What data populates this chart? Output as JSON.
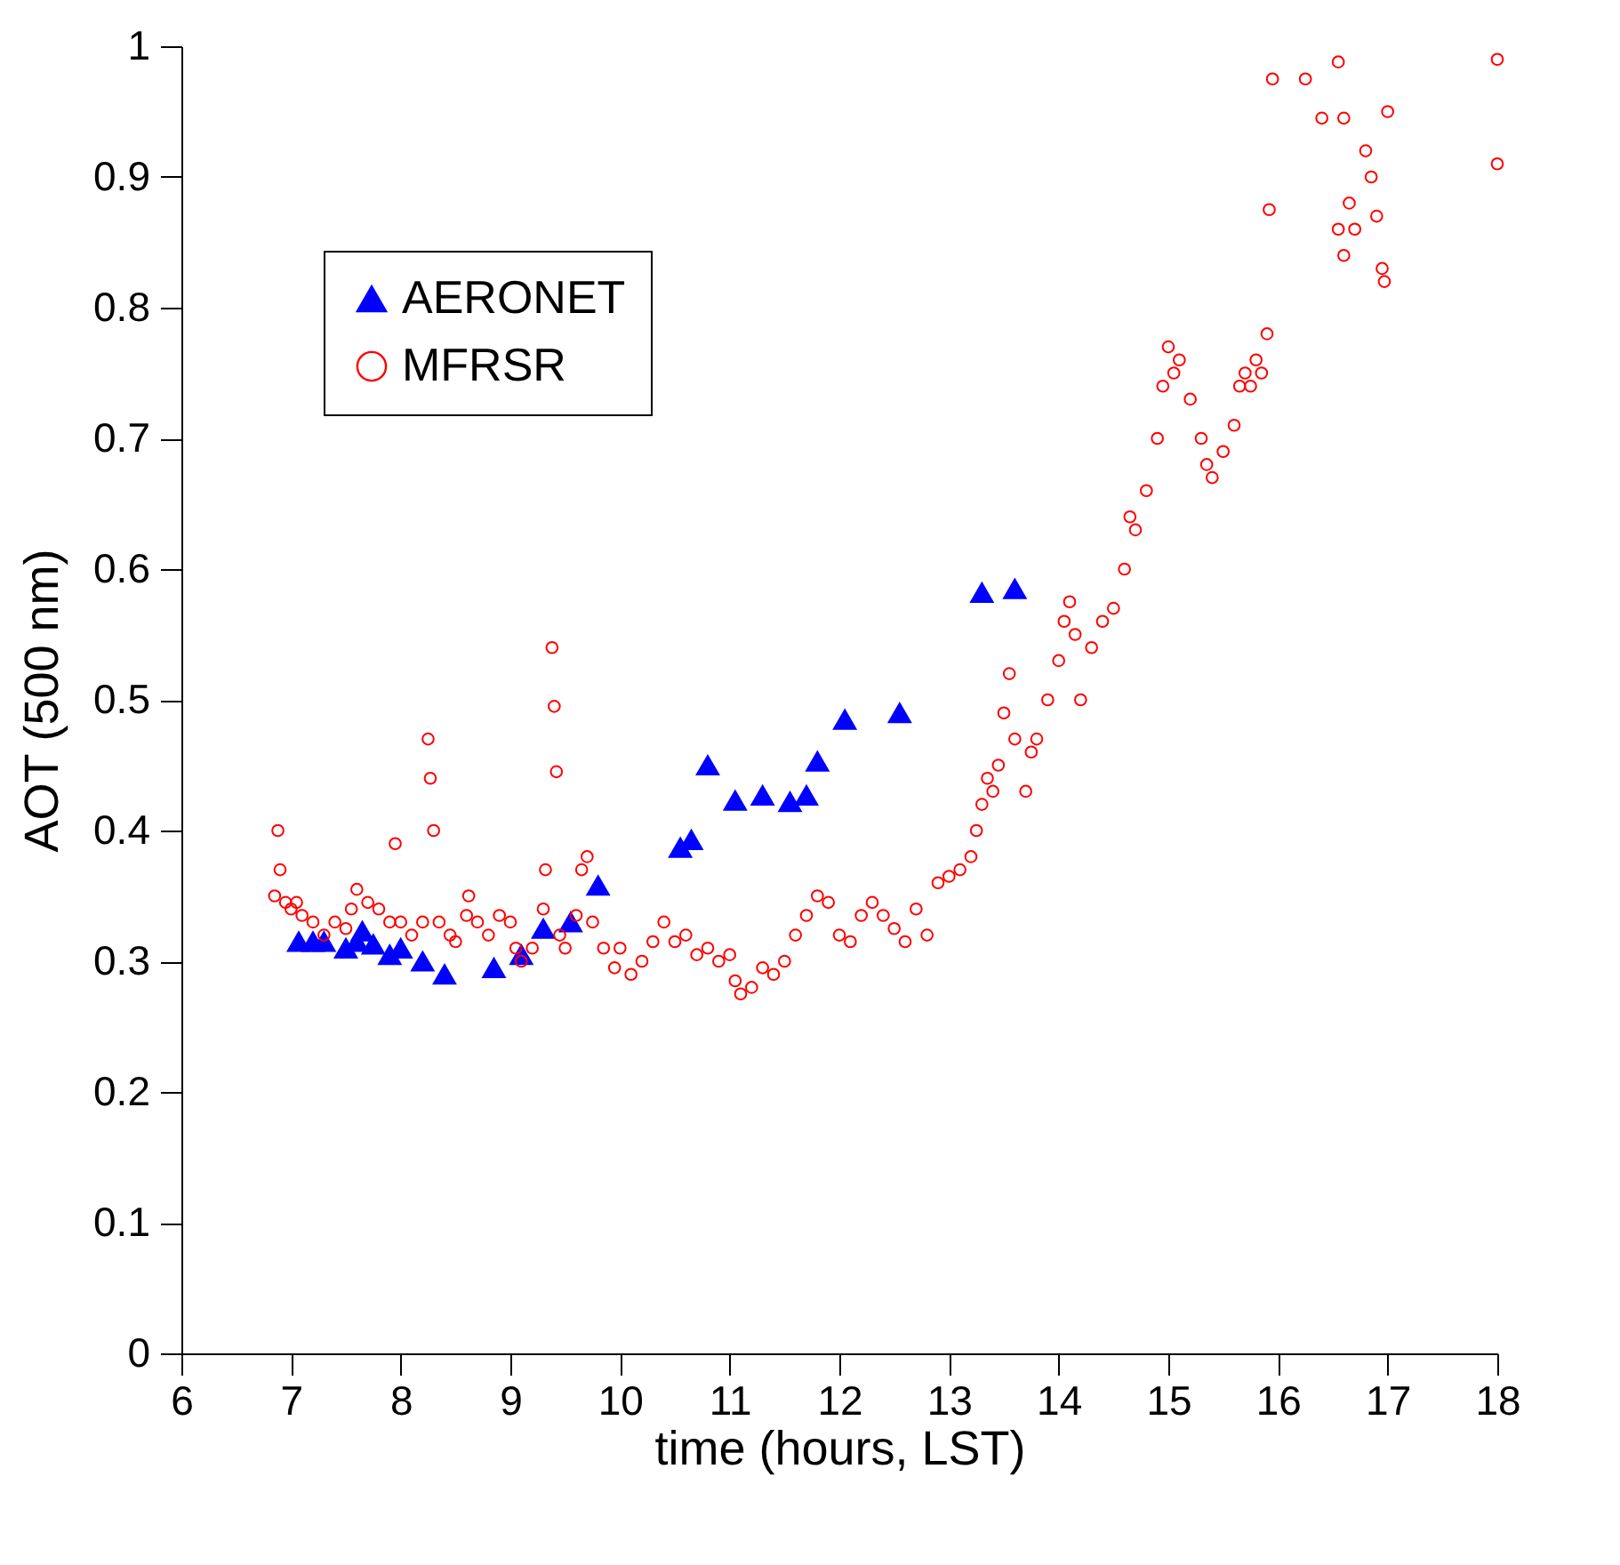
{
  "chart_data": {
    "type": "scatter",
    "xlabel": "time (hours, LST)",
    "ylabel": "AOT (500 nm)",
    "xlim": [
      6,
      18
    ],
    "xticks": [
      6,
      7,
      8,
      9,
      10,
      11,
      12,
      13,
      14,
      15,
      16,
      17,
      18
    ],
    "ylim": [
      0,
      1
    ],
    "yticks": [
      0,
      0.1,
      0.2,
      0.3,
      0.4,
      0.5,
      0.6,
      0.7,
      0.8,
      0.9,
      1
    ],
    "grid": false,
    "legend": "top left",
    "series": [
      {
        "name": "AERONET",
        "color": "#0000ff",
        "marker": "triangle",
        "x": [
          7.07,
          7.2,
          7.3,
          7.5,
          7.6,
          7.65,
          7.75,
          7.9,
          8.0,
          8.2,
          8.4,
          8.85,
          9.1,
          9.3,
          9.55,
          9.8,
          10.55,
          10.65,
          10.8,
          11.05,
          11.3,
          11.55,
          11.7,
          11.8,
          12.05,
          12.55,
          13.3,
          13.6
        ],
        "values": [
          0.315,
          0.315,
          0.315,
          0.31,
          0.315,
          0.323,
          0.313,
          0.305,
          0.31,
          0.3,
          0.29,
          0.295,
          0.305,
          0.325,
          0.33,
          0.358,
          0.387,
          0.393,
          0.45,
          0.423,
          0.427,
          0.422,
          0.427,
          0.453,
          0.485,
          0.49,
          0.582,
          0.585
        ]
      },
      {
        "name": "MFRSR",
        "color": "#ff0000",
        "marker": "circle",
        "x": [
          6.85,
          6.88,
          6.9,
          6.95,
          7.0,
          7.05,
          7.1,
          7.2,
          7.3,
          7.4,
          7.5,
          7.55,
          7.6,
          7.7,
          7.8,
          7.9,
          7.95,
          8.0,
          8.1,
          8.2,
          8.25,
          8.27,
          8.3,
          8.35,
          8.45,
          8.5,
          8.6,
          8.62,
          8.7,
          8.8,
          8.9,
          9.0,
          9.05,
          9.1,
          9.2,
          9.3,
          9.32,
          9.38,
          9.4,
          9.42,
          9.45,
          9.5,
          9.6,
          9.65,
          9.7,
          9.75,
          9.85,
          9.95,
          10.0,
          10.1,
          10.2,
          10.3,
          10.4,
          10.5,
          10.6,
          10.7,
          10.8,
          10.9,
          11.0,
          11.05,
          11.1,
          11.2,
          11.3,
          11.4,
          11.5,
          11.6,
          11.7,
          11.8,
          11.9,
          12.0,
          12.1,
          12.2,
          12.3,
          12.4,
          12.5,
          12.6,
          12.7,
          12.8,
          12.9,
          13.0,
          13.1,
          13.2,
          13.25,
          13.3,
          13.35,
          13.4,
          13.45,
          13.5,
          13.55,
          13.6,
          13.7,
          13.75,
          13.8,
          13.9,
          14.0,
          14.05,
          14.1,
          14.15,
          14.2,
          14.3,
          14.4,
          14.5,
          14.6,
          14.65,
          14.7,
          14.8,
          14.9,
          14.95,
          15.0,
          15.05,
          15.1,
          15.2,
          15.3,
          15.35,
          15.4,
          15.5,
          15.6,
          15.65,
          15.7,
          15.75,
          15.8,
          15.85,
          15.9,
          15.92,
          15.95,
          16.25,
          16.4,
          16.55,
          16.6,
          16.55,
          16.6,
          16.65,
          16.7,
          16.8,
          16.85,
          16.9,
          16.95,
          16.97,
          17.0,
          18.0,
          18.0
        ],
        "values": [
          0.35,
          0.4,
          0.37,
          0.345,
          0.34,
          0.345,
          0.335,
          0.33,
          0.32,
          0.33,
          0.325,
          0.34,
          0.355,
          0.345,
          0.34,
          0.33,
          0.39,
          0.33,
          0.32,
          0.33,
          0.47,
          0.44,
          0.4,
          0.33,
          0.32,
          0.315,
          0.335,
          0.35,
          0.33,
          0.32,
          0.335,
          0.33,
          0.31,
          0.3,
          0.31,
          0.34,
          0.37,
          0.54,
          0.495,
          0.445,
          0.32,
          0.31,
          0.335,
          0.37,
          0.38,
          0.33,
          0.31,
          0.295,
          0.31,
          0.29,
          0.3,
          0.315,
          0.33,
          0.315,
          0.32,
          0.305,
          0.31,
          0.3,
          0.305,
          0.285,
          0.275,
          0.28,
          0.295,
          0.29,
          0.3,
          0.32,
          0.335,
          0.35,
          0.345,
          0.32,
          0.315,
          0.335,
          0.345,
          0.335,
          0.325,
          0.315,
          0.34,
          0.32,
          0.36,
          0.365,
          0.37,
          0.38,
          0.4,
          0.42,
          0.44,
          0.43,
          0.45,
          0.49,
          0.52,
          0.47,
          0.43,
          0.46,
          0.47,
          0.5,
          0.53,
          0.56,
          0.575,
          0.55,
          0.5,
          0.54,
          0.56,
          0.57,
          0.6,
          0.64,
          0.63,
          0.66,
          0.7,
          0.74,
          0.77,
          0.75,
          0.76,
          0.73,
          0.7,
          0.68,
          0.67,
          0.69,
          0.71,
          0.74,
          0.75,
          0.74,
          0.76,
          0.75,
          0.78,
          0.875,
          0.975,
          0.975,
          0.945,
          0.988,
          0.945,
          0.86,
          0.84,
          0.88,
          0.86,
          0.92,
          0.9,
          0.87,
          0.83,
          0.82,
          0.95,
          0.99,
          0.91
        ]
      }
    ]
  }
}
